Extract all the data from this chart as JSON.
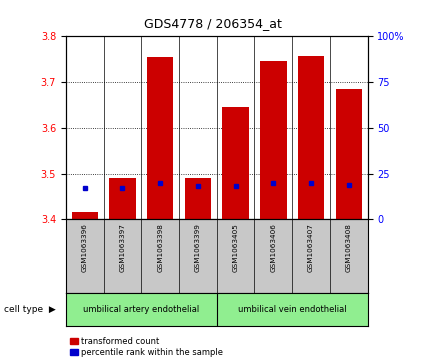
{
  "title": "GDS4778 / 206354_at",
  "samples": [
    "GSM1063396",
    "GSM1063397",
    "GSM1063398",
    "GSM1063399",
    "GSM1063405",
    "GSM1063406",
    "GSM1063407",
    "GSM1063408"
  ],
  "red_values": [
    3.415,
    3.49,
    3.755,
    3.49,
    3.645,
    3.745,
    3.757,
    3.685
  ],
  "blue_values": [
    17,
    17,
    20,
    18,
    18,
    20,
    20,
    19
  ],
  "ylim_left": [
    3.4,
    3.8
  ],
  "ylim_right": [
    0,
    100
  ],
  "yticks_left": [
    3.4,
    3.5,
    3.6,
    3.7,
    3.8
  ],
  "yticks_right": [
    0,
    25,
    50,
    75,
    100
  ],
  "ytick_labels_right": [
    "0",
    "25",
    "50",
    "75",
    "100%"
  ],
  "bar_base": 3.4,
  "cell_type_labels": [
    "umbilical artery endothelial",
    "umbilical vein endothelial"
  ],
  "cell_type_groups": [
    4,
    4
  ],
  "cell_type_color": "#90EE90",
  "gray_col_color": "#C8C8C8",
  "bar_color_red": "#CC0000",
  "bar_color_blue": "#0000CC",
  "background_color": "#ffffff",
  "tick_fontsize": 7,
  "bar_width": 0.7
}
